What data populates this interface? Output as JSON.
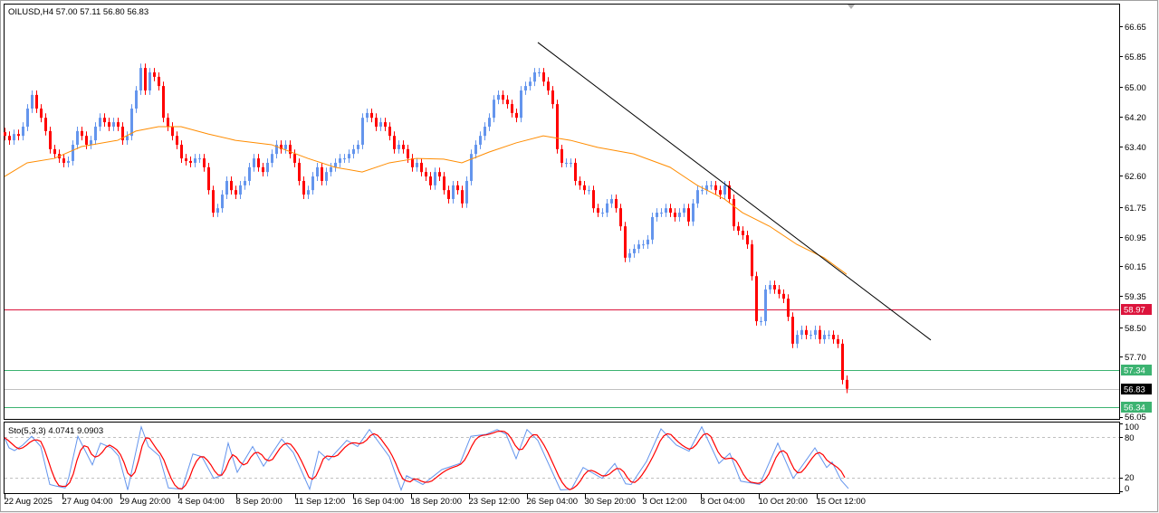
{
  "window": {
    "header": "OILUSD,H4  57.00 57.11 56.80 56.83"
  },
  "colors": {
    "bull": "#6495ED",
    "bear": "#FF0000",
    "ma": "#FF8C00",
    "trendline": "#000000",
    "resistance": "#DC143C",
    "support": "#3CB371",
    "last_price": "#C0C0C0",
    "stoch_main": "#6495ED",
    "stoch_signal": "#FF0000"
  },
  "chart_data": {
    "type": "candlestick",
    "symbol": "OILUSD",
    "timeframe": "H4",
    "last_ohlc": {
      "open": 57.0,
      "high": 57.11,
      "low": 56.8,
      "close": 56.83
    },
    "ylim": [
      56.05,
      66.65
    ],
    "y_ticks": [
      "66.65",
      "65.85",
      "65.00",
      "64.20",
      "63.40",
      "62.60",
      "61.75",
      "60.95",
      "60.15",
      "59.35",
      "58.50",
      "57.70",
      "56.05"
    ],
    "x_ticks": [
      "22 Aug 2025",
      "27 Aug 04:00",
      "29 Aug 20:00",
      "4 Sep 04:00",
      "8 Sep 20:00",
      "11 Sep 12:00",
      "16 Sep 04:00",
      "18 Sep 20:00",
      "23 Sep 12:00",
      "26 Sep 04:00",
      "30 Sep 20:00",
      "3 Oct 12:00",
      "8 Oct 04:00",
      "10 Oct 20:00",
      "15 Oct 12:00"
    ],
    "closes": [
      63.68,
      63.56,
      63.73,
      63.68,
      63.93,
      64.42,
      64.79,
      64.42,
      64.17,
      63.81,
      63.32,
      63.19,
      63.07,
      62.95,
      63.0,
      63.44,
      63.81,
      63.68,
      63.44,
      63.56,
      63.93,
      64.17,
      64.05,
      63.93,
      64.05,
      63.93,
      63.56,
      63.68,
      64.42,
      64.91,
      65.52,
      64.91,
      65.4,
      65.28,
      65.03,
      64.17,
      63.93,
      63.68,
      63.44,
      63.07,
      63.0,
      62.95,
      63.07,
      63.07,
      62.83,
      62.21,
      61.6,
      61.72,
      62.09,
      62.46,
      62.21,
      62.09,
      62.34,
      62.46,
      62.83,
      63.07,
      62.83,
      62.7,
      62.95,
      63.19,
      63.44,
      63.32,
      63.44,
      63.19,
      62.95,
      62.46,
      62.09,
      62.21,
      62.58,
      62.83,
      62.46,
      62.7,
      62.83,
      62.95,
      63.07,
      63.07,
      63.19,
      63.32,
      63.44,
      64.17,
      64.3,
      64.17,
      63.93,
      64.05,
      63.93,
      63.68,
      63.32,
      63.44,
      63.32,
      63.07,
      62.83,
      62.95,
      62.7,
      62.58,
      62.34,
      62.7,
      62.58,
      62.21,
      61.97,
      62.34,
      62.21,
      61.85,
      62.46,
      63.19,
      63.44,
      63.68,
      63.93,
      64.17,
      64.66,
      64.79,
      64.66,
      64.54,
      64.3,
      64.17,
      64.91,
      65.03,
      65.15,
      65.4,
      65.4,
      65.15,
      64.91,
      64.54,
      63.32,
      62.95,
      62.95,
      62.95,
      62.46,
      62.34,
      62.21,
      62.21,
      61.72,
      61.6,
      61.6,
      61.85,
      61.97,
      61.72,
      61.23,
      60.38,
      60.5,
      60.62,
      60.74,
      60.74,
      60.87,
      61.48,
      61.6,
      61.6,
      61.72,
      61.6,
      61.48,
      61.6,
      61.72,
      61.36,
      61.85,
      62.21,
      62.21,
      62.34,
      62.34,
      62.21,
      62.09,
      62.34,
      61.97,
      61.23,
      61.11,
      60.99,
      60.74,
      59.88,
      58.66,
      58.66,
      59.52,
      59.64,
      59.52,
      59.4,
      59.27,
      58.78,
      58.05,
      58.29,
      58.42,
      58.29,
      58.29,
      58.42,
      58.17,
      58.29,
      58.29,
      58.17,
      58.05,
      57.07,
      56.83
    ],
    "moving_average": [
      [
        0,
        62.58
      ],
      [
        5,
        62.95
      ],
      [
        11,
        63.07
      ],
      [
        17,
        63.39
      ],
      [
        25,
        63.56
      ],
      [
        29,
        63.81
      ],
      [
        34,
        63.93
      ],
      [
        39,
        63.93
      ],
      [
        45,
        63.73
      ],
      [
        51,
        63.56
      ],
      [
        59,
        63.44
      ],
      [
        67,
        63.07
      ],
      [
        73,
        62.83
      ],
      [
        79,
        62.7
      ],
      [
        85,
        62.95
      ],
      [
        91,
        63.07
      ],
      [
        97,
        63.05
      ],
      [
        101,
        62.95
      ],
      [
        107,
        63.24
      ],
      [
        113,
        63.49
      ],
      [
        119,
        63.68
      ],
      [
        125,
        63.56
      ],
      [
        131,
        63.37
      ],
      [
        139,
        63.19
      ],
      [
        147,
        62.83
      ],
      [
        153,
        62.34
      ],
      [
        159,
        61.97
      ],
      [
        163,
        61.6
      ],
      [
        169,
        61.23
      ],
      [
        175,
        60.74
      ],
      [
        181,
        60.38
      ],
      [
        186,
        59.93
      ]
    ],
    "trendline": {
      "from": {
        "bar": 117.8,
        "price": 66.21
      },
      "to": {
        "bar": 204.6,
        "price": 58.15
      }
    },
    "levels": [
      {
        "price": 58.97,
        "label": "58.97",
        "kind": "resistance"
      },
      {
        "price": 57.34,
        "label": "57.34",
        "kind": "support"
      },
      {
        "price": 56.83,
        "label": "56.83",
        "kind": "last_price"
      },
      {
        "price": 56.34,
        "label": "56.34",
        "kind": "support"
      }
    ],
    "stochastic": {
      "header": "Sto(5,3,3) 4.0741 9.0903",
      "ylim": [
        0,
        100
      ],
      "levels": [
        20,
        80
      ],
      "y_ticks": [
        "100",
        "80",
        "20",
        "0"
      ],
      "main": [
        [
          0,
          79
        ],
        [
          1,
          64
        ],
        [
          2.2,
          60
        ],
        [
          4,
          68
        ],
        [
          6,
          81
        ],
        [
          8,
          66
        ],
        [
          10,
          10
        ],
        [
          11.2,
          8
        ],
        [
          13.4,
          5
        ],
        [
          14.2,
          21
        ],
        [
          16.2,
          81
        ],
        [
          19.4,
          39
        ],
        [
          21.2,
          71
        ],
        [
          23.6,
          64
        ],
        [
          25.2,
          52
        ],
        [
          27.2,
          2
        ],
        [
          30.2,
          95
        ],
        [
          31.8,
          66
        ],
        [
          34.2,
          52
        ],
        [
          36.2,
          5
        ],
        [
          39.2,
          3
        ],
        [
          41.6,
          55
        ],
        [
          43.6,
          51
        ],
        [
          46.2,
          19
        ],
        [
          47.8,
          23
        ],
        [
          49.4,
          71
        ],
        [
          51.4,
          28
        ],
        [
          54.8,
          66
        ],
        [
          57.2,
          37
        ],
        [
          61.2,
          77
        ],
        [
          63.8,
          57
        ],
        [
          67.4,
          3
        ],
        [
          69.4,
          59
        ],
        [
          71.6,
          46
        ],
        [
          75.6,
          75
        ],
        [
          78,
          66
        ],
        [
          80.6,
          91
        ],
        [
          85,
          51
        ],
        [
          87.6,
          2
        ],
        [
          88.8,
          23
        ],
        [
          92.4,
          10
        ],
        [
          96.6,
          32
        ],
        [
          100.6,
          41
        ],
        [
          103,
          81
        ],
        [
          106.4,
          84
        ],
        [
          108.8,
          91
        ],
        [
          110.8,
          84
        ],
        [
          113,
          48
        ],
        [
          115.4,
          91
        ],
        [
          117.8,
          75
        ],
        [
          122.8,
          2
        ],
        [
          125.2,
          3
        ],
        [
          127.8,
          35
        ],
        [
          132,
          19
        ],
        [
          134.8,
          41
        ],
        [
          137.2,
          11
        ],
        [
          138.4,
          10
        ],
        [
          141.8,
          44
        ],
        [
          145,
          92
        ],
        [
          148.4,
          68
        ],
        [
          151.2,
          59
        ],
        [
          154,
          95
        ],
        [
          157.8,
          41
        ],
        [
          160.2,
          56
        ],
        [
          162.6,
          15
        ],
        [
          166.8,
          10
        ],
        [
          170.8,
          71
        ],
        [
          174.2,
          19
        ],
        [
          179,
          64
        ],
        [
          181.6,
          35
        ],
        [
          182.8,
          43
        ],
        [
          184.8,
          16
        ],
        [
          186.4,
          4.07
        ]
      ]
    }
  }
}
